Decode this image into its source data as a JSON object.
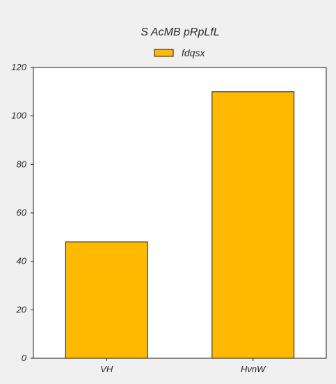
{
  "chart_data": {
    "type": "bar",
    "title": "S AcMB pRpLfL",
    "categories": [
      "VH",
      "HvnW"
    ],
    "series": [
      {
        "name": "fdqsx",
        "values": [
          48,
          110
        ],
        "color": "#ffb900"
      }
    ],
    "ylim": [
      0,
      120
    ],
    "yticks": [
      0,
      20,
      40,
      60,
      80,
      100,
      120
    ],
    "xlabel": "",
    "ylabel": "",
    "grid": false,
    "legend": "top-center",
    "colors": {
      "background": "#f0f0f0",
      "plot_background": "#ffffff",
      "bar_edge": "#1a1a1a",
      "axis": "#1a1a1a"
    }
  }
}
